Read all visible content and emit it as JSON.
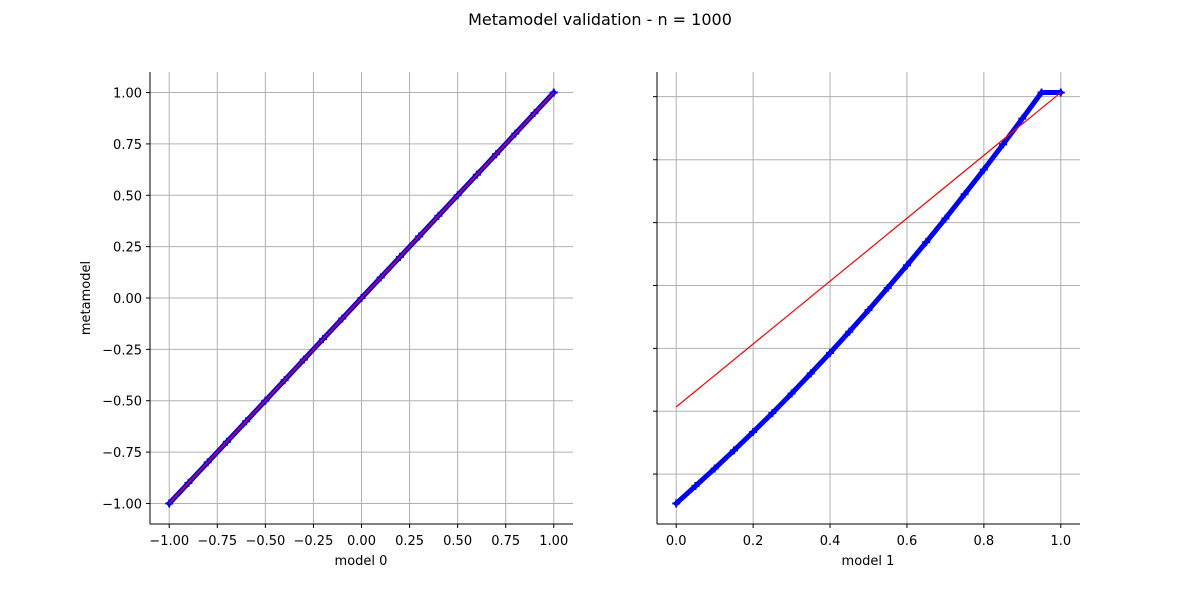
{
  "figure": {
    "title": "Metamodel validation - n = 1000"
  },
  "chart_data": [
    {
      "type": "scatter",
      "title": "",
      "xlabel": "model 0",
      "ylabel": "metamodel",
      "xlim": [
        -1.1,
        1.1
      ],
      "ylim": [
        -1.1,
        1.1
      ],
      "x_ticks": [
        -1.0,
        -0.75,
        -0.5,
        -0.25,
        0.0,
        0.25,
        0.5,
        0.75,
        1.0
      ],
      "x_tick_labels": [
        "−1.00",
        "−0.75",
        "−0.50",
        "−0.25",
        "0.00",
        "0.25",
        "0.50",
        "0.75",
        "1.00"
      ],
      "y_ticks": [
        -1.0,
        -0.75,
        -0.5,
        -0.25,
        0.0,
        0.25,
        0.5,
        0.75,
        1.0
      ],
      "y_tick_labels": [
        "−1.00",
        "−0.75",
        "−0.50",
        "−0.25",
        "0.00",
        "0.25",
        "0.50",
        "0.75",
        "1.00"
      ],
      "grid": true,
      "series": [
        {
          "kind": "points",
          "color": "#0000ff",
          "marker": "+",
          "x": [
            -1.0,
            -0.9,
            -0.8,
            -0.7,
            -0.6,
            -0.5,
            -0.4,
            -0.3,
            -0.2,
            -0.1,
            0.0,
            0.1,
            0.2,
            0.3,
            0.4,
            0.5,
            0.6,
            0.7,
            0.8,
            0.9,
            1.0
          ],
          "y": [
            -1.0,
            -0.9,
            -0.8,
            -0.7,
            -0.6,
            -0.5,
            -0.4,
            -0.3,
            -0.2,
            -0.1,
            0.0,
            0.1,
            0.2,
            0.3,
            0.4,
            0.5,
            0.6,
            0.7,
            0.8,
            0.9,
            1.0
          ]
        },
        {
          "kind": "line",
          "color": "#ff0000",
          "x": [
            -1.0,
            1.0
          ],
          "y": [
            -1.0,
            1.0
          ]
        }
      ]
    },
    {
      "type": "scatter",
      "title": "",
      "xlabel": "model 1",
      "ylabel": "",
      "xlim": [
        -0.05,
        1.05
      ],
      "ylim": [
        -1.1,
        1.1
      ],
      "x_ticks": [
        0.0,
        0.2,
        0.4,
        0.6,
        0.8,
        1.0
      ],
      "x_tick_labels": [
        "0.0",
        "0.2",
        "0.4",
        "0.6",
        "0.8",
        "1.0"
      ],
      "y_ticks": [
        -0.857,
        -0.551,
        -0.245,
        0.061,
        0.367,
        0.673,
        0.98
      ],
      "y_tick_labels": [
        "",
        "",
        "",
        "",
        "",
        "",
        ""
      ],
      "grid": true,
      "series": [
        {
          "kind": "points",
          "color": "#0000ff",
          "marker": "+",
          "x": [
            0.0,
            0.05,
            0.1,
            0.15,
            0.2,
            0.25,
            0.3,
            0.35,
            0.4,
            0.45,
            0.5,
            0.55,
            0.6,
            0.65,
            0.7,
            0.75,
            0.8,
            0.85,
            0.9,
            0.95,
            1.0
          ],
          "y": [
            -1.0,
            -0.915,
            -0.83,
            -0.742,
            -0.652,
            -0.56,
            -0.465,
            -0.367,
            -0.267,
            -0.164,
            -0.059,
            0.049,
            0.159,
            0.272,
            0.387,
            0.505,
            0.625,
            0.748,
            0.873,
            1.0,
            1.0
          ]
        },
        {
          "kind": "line",
          "color": "#ff0000",
          "x": [
            0.0,
            1.0
          ],
          "y": [
            -0.53,
            1.0
          ]
        }
      ]
    }
  ]
}
